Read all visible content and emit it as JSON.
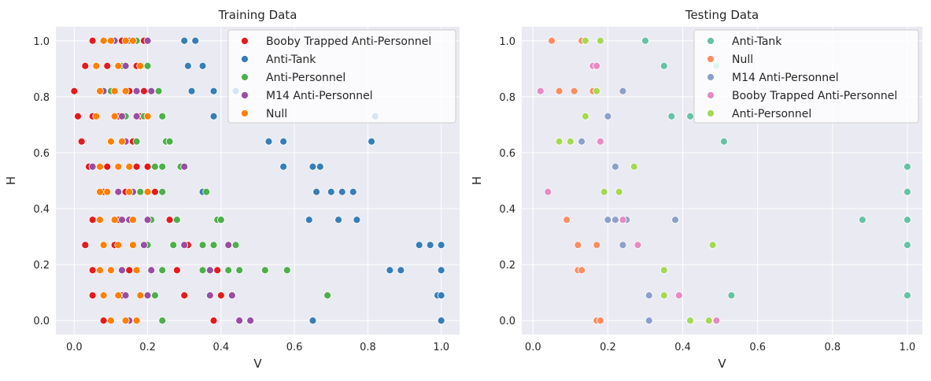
{
  "chart_data": [
    {
      "type": "scatter",
      "title": "Training Data",
      "xlabel": "V",
      "ylabel": "H",
      "xlim": [
        -0.05,
        1.05
      ],
      "ylim": [
        -0.05,
        1.05
      ],
      "xticks": [
        "0.0",
        "0.2",
        "0.4",
        "0.6",
        "0.8",
        "1.0"
      ],
      "yticks": [
        "0.0",
        "0.2",
        "0.4",
        "0.6",
        "0.8",
        "1.0"
      ],
      "grid": true,
      "legend": "top-right",
      "series": [
        {
          "name": "Booby Trapped Anti-Personnel",
          "color": "#e41a1c",
          "points": [
            [
              0.05,
              1.0
            ],
            [
              0.13,
              1.0
            ],
            [
              0.19,
              1.0
            ],
            [
              0.03,
              0.91
            ],
            [
              0.09,
              0.91
            ],
            [
              0.17,
              0.91
            ],
            [
              0.0,
              0.82
            ],
            [
              0.08,
              0.82
            ],
            [
              0.15,
              0.82
            ],
            [
              0.19,
              0.82
            ],
            [
              0.01,
              0.73
            ],
            [
              0.05,
              0.73
            ],
            [
              0.12,
              0.73
            ],
            [
              0.18,
              0.73
            ],
            [
              0.02,
              0.64
            ],
            [
              0.1,
              0.64
            ],
            [
              0.16,
              0.64
            ],
            [
              0.04,
              0.55
            ],
            [
              0.09,
              0.55
            ],
            [
              0.17,
              0.55
            ],
            [
              0.2,
              0.55
            ],
            [
              0.08,
              0.46
            ],
            [
              0.14,
              0.46
            ],
            [
              0.22,
              0.46
            ],
            [
              0.05,
              0.36
            ],
            [
              0.12,
              0.36
            ],
            [
              0.26,
              0.36
            ],
            [
              0.03,
              0.27
            ],
            [
              0.11,
              0.27
            ],
            [
              0.31,
              0.27
            ],
            [
              0.05,
              0.18
            ],
            [
              0.15,
              0.18
            ],
            [
              0.28,
              0.18
            ],
            [
              0.39,
              0.18
            ],
            [
              0.05,
              0.09
            ],
            [
              0.13,
              0.09
            ],
            [
              0.3,
              0.09
            ],
            [
              0.4,
              0.09
            ],
            [
              0.08,
              0.0
            ],
            [
              0.38,
              0.0
            ]
          ]
        },
        {
          "name": "Anti-Tank",
          "color": "#377eb8",
          "points": [
            [
              0.3,
              1.0
            ],
            [
              0.33,
              1.0
            ],
            [
              0.31,
              0.91
            ],
            [
              0.35,
              0.91
            ],
            [
              0.32,
              0.82
            ],
            [
              0.38,
              0.82
            ],
            [
              0.44,
              0.82
            ],
            [
              0.38,
              0.73
            ],
            [
              0.82,
              0.73
            ],
            [
              0.53,
              0.64
            ],
            [
              0.57,
              0.64
            ],
            [
              0.81,
              0.64
            ],
            [
              0.57,
              0.55
            ],
            [
              0.65,
              0.55
            ],
            [
              0.67,
              0.55
            ],
            [
              0.35,
              0.46
            ],
            [
              0.66,
              0.46
            ],
            [
              0.7,
              0.46
            ],
            [
              0.73,
              0.46
            ],
            [
              0.76,
              0.46
            ],
            [
              0.64,
              0.36
            ],
            [
              0.72,
              0.36
            ],
            [
              0.77,
              0.36
            ],
            [
              0.94,
              0.27
            ],
            [
              0.97,
              0.27
            ],
            [
              1.0,
              0.27
            ],
            [
              0.86,
              0.18
            ],
            [
              0.89,
              0.18
            ],
            [
              1.0,
              0.18
            ],
            [
              0.99,
              0.09
            ],
            [
              1.0,
              0.09
            ],
            [
              0.65,
              0.0
            ],
            [
              1.0,
              0.0
            ]
          ]
        },
        {
          "name": "Anti-Personnel",
          "color": "#4daf4a",
          "points": [
            [
              0.17,
              1.0
            ],
            [
              0.13,
              0.91
            ],
            [
              0.2,
              0.91
            ],
            [
              0.1,
              0.82
            ],
            [
              0.23,
              0.82
            ],
            [
              0.14,
              0.73
            ],
            [
              0.19,
              0.73
            ],
            [
              0.24,
              0.73
            ],
            [
              0.17,
              0.64
            ],
            [
              0.25,
              0.64
            ],
            [
              0.26,
              0.64
            ],
            [
              0.22,
              0.55
            ],
            [
              0.24,
              0.55
            ],
            [
              0.29,
              0.55
            ],
            [
              0.18,
              0.46
            ],
            [
              0.24,
              0.46
            ],
            [
              0.36,
              0.46
            ],
            [
              0.21,
              0.36
            ],
            [
              0.28,
              0.36
            ],
            [
              0.39,
              0.36
            ],
            [
              0.4,
              0.36
            ],
            [
              0.2,
              0.27
            ],
            [
              0.27,
              0.27
            ],
            [
              0.35,
              0.27
            ],
            [
              0.38,
              0.27
            ],
            [
              0.44,
              0.27
            ],
            [
              0.24,
              0.18
            ],
            [
              0.35,
              0.18
            ],
            [
              0.42,
              0.18
            ],
            [
              0.45,
              0.18
            ],
            [
              0.52,
              0.18
            ],
            [
              0.58,
              0.18
            ],
            [
              0.22,
              0.09
            ],
            [
              0.69,
              0.09
            ],
            [
              0.24,
              0.0
            ]
          ]
        },
        {
          "name": "M14 Anti-Personnel",
          "color": "#984ea3",
          "points": [
            [
              0.11,
              1.0
            ],
            [
              0.15,
              1.0
            ],
            [
              0.2,
              1.0
            ],
            [
              0.14,
              0.91
            ],
            [
              0.08,
              0.82
            ],
            [
              0.17,
              0.82
            ],
            [
              0.21,
              0.82
            ],
            [
              0.13,
              0.73
            ],
            [
              0.17,
              0.73
            ],
            [
              0.14,
              0.64
            ],
            [
              0.05,
              0.55
            ],
            [
              0.15,
              0.55
            ],
            [
              0.3,
              0.55
            ],
            [
              0.12,
              0.46
            ],
            [
              0.16,
              0.46
            ],
            [
              0.13,
              0.36
            ],
            [
              0.15,
              0.36
            ],
            [
              0.2,
              0.36
            ],
            [
              0.19,
              0.27
            ],
            [
              0.3,
              0.27
            ],
            [
              0.42,
              0.27
            ],
            [
              0.13,
              0.18
            ],
            [
              0.21,
              0.18
            ],
            [
              0.37,
              0.18
            ],
            [
              0.14,
              0.09
            ],
            [
              0.2,
              0.09
            ],
            [
              0.37,
              0.09
            ],
            [
              0.43,
              0.09
            ],
            [
              0.15,
              0.0
            ],
            [
              0.45,
              0.0
            ],
            [
              0.48,
              0.0
            ]
          ]
        },
        {
          "name": "Null",
          "color": "#ff7f00",
          "points": [
            [
              0.08,
              1.0
            ],
            [
              0.1,
              1.0
            ],
            [
              0.14,
              1.0
            ],
            [
              0.16,
              1.0
            ],
            [
              0.06,
              0.91
            ],
            [
              0.12,
              0.91
            ],
            [
              0.18,
              0.91
            ],
            [
              0.07,
              0.82
            ],
            [
              0.11,
              0.82
            ],
            [
              0.14,
              0.82
            ],
            [
              0.06,
              0.73
            ],
            [
              0.11,
              0.73
            ],
            [
              0.2,
              0.73
            ],
            [
              0.1,
              0.64
            ],
            [
              0.13,
              0.64
            ],
            [
              0.07,
              0.55
            ],
            [
              0.12,
              0.55
            ],
            [
              0.15,
              0.55
            ],
            [
              0.07,
              0.46
            ],
            [
              0.09,
              0.46
            ],
            [
              0.15,
              0.46
            ],
            [
              0.2,
              0.46
            ],
            [
              0.07,
              0.36
            ],
            [
              0.11,
              0.36
            ],
            [
              0.16,
              0.36
            ],
            [
              0.08,
              0.27
            ],
            [
              0.12,
              0.27
            ],
            [
              0.16,
              0.27
            ],
            [
              0.07,
              0.18
            ],
            [
              0.1,
              0.18
            ],
            [
              0.17,
              0.18
            ],
            [
              0.08,
              0.09
            ],
            [
              0.12,
              0.09
            ],
            [
              0.18,
              0.09
            ],
            [
              0.1,
              0.0
            ],
            [
              0.14,
              0.0
            ],
            [
              0.17,
              0.0
            ]
          ]
        }
      ]
    },
    {
      "type": "scatter",
      "title": "Testing Data",
      "xlabel": "V",
      "ylabel": "H",
      "xlim": [
        -0.03,
        1.04
      ],
      "ylim": [
        -0.05,
        1.05
      ],
      "xticks": [
        "0.0",
        "0.2",
        "0.4",
        "0.6",
        "0.8",
        "1.0"
      ],
      "yticks": [
        "0.0",
        "0.2",
        "0.4",
        "0.6",
        "0.8",
        "1.0"
      ],
      "grid": true,
      "legend": "top-right",
      "series": [
        {
          "name": "Anti-Tank",
          "color": "#66c2a5",
          "points": [
            [
              0.3,
              1.0
            ],
            [
              0.35,
              0.91
            ],
            [
              0.49,
              0.91
            ],
            [
              0.37,
              0.73
            ],
            [
              0.42,
              0.73
            ],
            [
              0.51,
              0.64
            ],
            [
              1.0,
              0.55
            ],
            [
              1.0,
              0.46
            ],
            [
              0.88,
              0.36
            ],
            [
              1.0,
              0.36
            ],
            [
              1.0,
              0.27
            ],
            [
              0.53,
              0.09
            ],
            [
              1.0,
              0.09
            ]
          ]
        },
        {
          "name": "Null",
          "color": "#fc8d62",
          "points": [
            [
              0.05,
              1.0
            ],
            [
              0.13,
              1.0
            ],
            [
              0.07,
              0.82
            ],
            [
              0.11,
              0.82
            ],
            [
              0.16,
              0.82
            ],
            [
              0.17,
              0.82
            ],
            [
              0.07,
              0.64
            ],
            [
              0.09,
              0.36
            ],
            [
              0.12,
              0.27
            ],
            [
              0.17,
              0.27
            ],
            [
              0.12,
              0.18
            ],
            [
              0.13,
              0.18
            ],
            [
              0.17,
              0.0
            ],
            [
              0.18,
              0.0
            ]
          ]
        },
        {
          "name": "M14 Anti-Personnel",
          "color": "#8da0cb",
          "points": [
            [
              0.16,
              0.91
            ],
            [
              0.24,
              0.82
            ],
            [
              0.2,
              0.73
            ],
            [
              0.13,
              0.64
            ],
            [
              0.22,
              0.55
            ],
            [
              0.2,
              0.36
            ],
            [
              0.22,
              0.36
            ],
            [
              0.25,
              0.36
            ],
            [
              0.38,
              0.36
            ],
            [
              0.24,
              0.27
            ],
            [
              0.31,
              0.09
            ],
            [
              0.31,
              0.0
            ]
          ]
        },
        {
          "name": "Booby Trapped Anti-Personnel",
          "color": "#e78ac3",
          "points": [
            [
              0.16,
              0.91
            ],
            [
              0.17,
              0.91
            ],
            [
              0.02,
              0.82
            ],
            [
              0.14,
              0.73
            ],
            [
              0.18,
              0.64
            ],
            [
              0.04,
              0.46
            ],
            [
              0.24,
              0.36
            ],
            [
              0.28,
              0.27
            ],
            [
              0.39,
              0.09
            ],
            [
              0.49,
              0.0
            ]
          ]
        },
        {
          "name": "Anti-Personnel",
          "color": "#a6d854",
          "points": [
            [
              0.14,
              1.0
            ],
            [
              0.18,
              1.0
            ],
            [
              0.17,
              0.82
            ],
            [
              0.14,
              0.73
            ],
            [
              0.07,
              0.64
            ],
            [
              0.1,
              0.64
            ],
            [
              0.27,
              0.55
            ],
            [
              0.19,
              0.46
            ],
            [
              0.23,
              0.46
            ],
            [
              0.48,
              0.27
            ],
            [
              0.35,
              0.18
            ],
            [
              0.35,
              0.09
            ],
            [
              0.42,
              0.0
            ],
            [
              0.47,
              0.0
            ]
          ]
        }
      ]
    }
  ]
}
